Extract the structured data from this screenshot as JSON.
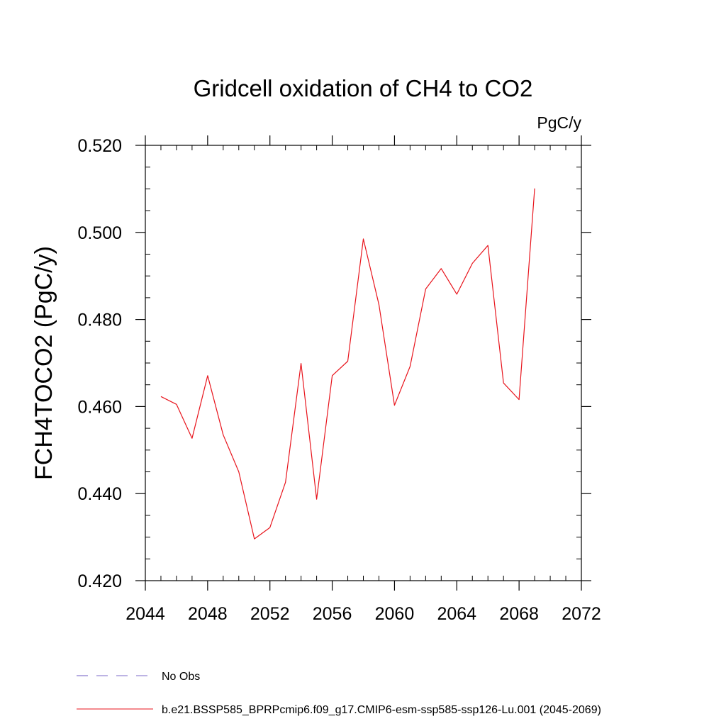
{
  "chart_data": {
    "type": "line",
    "title": "Gridcell oxidation of CH4 to CO2",
    "units": "PgC/y",
    "xlabel": "",
    "ylabel": "FCH4TOCO2  (PgC/y)",
    "xlim": [
      2044,
      2072
    ],
    "ylim": [
      0.42,
      0.52
    ],
    "x_ticks": [
      2044,
      2048,
      2052,
      2056,
      2060,
      2064,
      2068,
      2072
    ],
    "x_tick_labels": [
      "2044",
      "2048",
      "2052",
      "2056",
      "2060",
      "2064",
      "2068",
      "2072"
    ],
    "y_ticks": [
      0.42,
      0.44,
      0.46,
      0.48,
      0.5,
      0.52
    ],
    "y_tick_labels": [
      "0.420",
      "0.440",
      "0.460",
      "0.480",
      "0.500",
      "0.520"
    ],
    "grid": false,
    "legend_position": "bottom-left",
    "series": [
      {
        "name": "b.e21.BSSP585_BPRPcmip6.f09_g17.CMIP6-esm-ssp585-ssp126-Lu.001 (2045-2069)",
        "color": "#e8141c",
        "style": "solid",
        "x": [
          2045,
          2046,
          2047,
          2048,
          2049,
          2050,
          2051,
          2052,
          2053,
          2054,
          2055,
          2056,
          2057,
          2058,
          2059,
          2060,
          2061,
          2062,
          2063,
          2064,
          2065,
          2066,
          2067,
          2068,
          2069
        ],
        "y": [
          0.4623,
          0.4605,
          0.4527,
          0.4671,
          0.4535,
          0.445,
          0.4296,
          0.4322,
          0.4426,
          0.4699,
          0.4387,
          0.4671,
          0.4704,
          0.4985,
          0.4834,
          0.4603,
          0.4692,
          0.487,
          0.4917,
          0.4858,
          0.4929,
          0.497,
          0.4654,
          0.4616,
          0.5101
        ]
      },
      {
        "name": "No Obs",
        "color": "#7b68c8",
        "style": "dashed",
        "x": [],
        "y": []
      }
    ]
  }
}
